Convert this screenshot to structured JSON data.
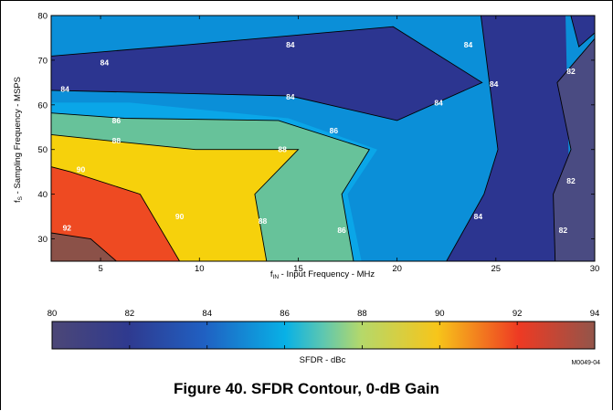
{
  "chart_data": {
    "type": "contour",
    "xlabel_parts": [
      "f",
      "IN",
      " - Input Frequency - MHz"
    ],
    "ylabel_parts": [
      "f",
      "S",
      " - Sampling Frequency - MSPS"
    ],
    "xlim": [
      2.5,
      30
    ],
    "ylim": [
      25,
      80
    ],
    "xticks": [
      5,
      10,
      15,
      20,
      25,
      30
    ],
    "yticks": [
      30,
      40,
      50,
      60,
      70,
      80
    ],
    "contour_labels": [
      {
        "text": "84",
        "x": 5.2,
        "y": 69.5
      },
      {
        "text": "84",
        "x": 14.6,
        "y": 73.5
      },
      {
        "text": "84",
        "x": 23.6,
        "y": 73.5
      },
      {
        "text": "84",
        "x": 3.2,
        "y": 63.5
      },
      {
        "text": "84",
        "x": 14.6,
        "y": 61.8
      },
      {
        "text": "84",
        "x": 24.9,
        "y": 64.7
      },
      {
        "text": "84",
        "x": 22.1,
        "y": 60.5
      },
      {
        "text": "82",
        "x": 28.8,
        "y": 67.5
      },
      {
        "text": "86",
        "x": 5.8,
        "y": 56.5
      },
      {
        "text": "86",
        "x": 16.8,
        "y": 54.2
      },
      {
        "text": "88",
        "x": 5.8,
        "y": 52.0
      },
      {
        "text": "88",
        "x": 14.2,
        "y": 50.0
      },
      {
        "text": "90",
        "x": 4.0,
        "y": 45.5
      },
      {
        "text": "90",
        "x": 9.0,
        "y": 35.0
      },
      {
        "text": "88",
        "x": 13.2,
        "y": 34.0
      },
      {
        "text": "86",
        "x": 17.2,
        "y": 32.0
      },
      {
        "text": "84",
        "x": 24.1,
        "y": 35.0
      },
      {
        "text": "82",
        "x": 28.8,
        "y": 43.0
      },
      {
        "text": "82",
        "x": 28.4,
        "y": 32.0
      },
      {
        "text": "92",
        "x": 3.3,
        "y": 32.5
      }
    ],
    "colorbar": {
      "label": "SFDR - dBc",
      "min": 80,
      "max": 94,
      "ticks": [
        80,
        82,
        84,
        86,
        88,
        90,
        92,
        94
      ]
    },
    "colors": {
      "level_82": "#4a4b82",
      "level_84": "#2c3590",
      "level_84b": "#0b8fd8",
      "level_86": "#0aa6e8",
      "level_88": "#67c29a",
      "level_90": "#f6d10c",
      "level_92": "#ee4a22",
      "level_94": "#8b5148"
    }
  },
  "figure": {
    "caption": "Figure 40. SFDR Contour, 0-dB Gain",
    "code": "M0049-04"
  }
}
